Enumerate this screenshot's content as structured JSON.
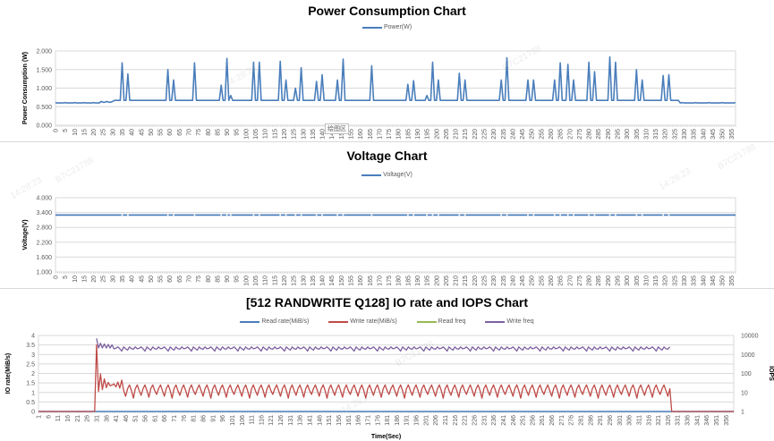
{
  "charts": {
    "power": {
      "title": "Power Consumption Chart",
      "legend": [
        {
          "label": "Power(W)",
          "color": "#4a7ebb"
        }
      ],
      "ylabel": "Power Consumption (W)",
      "yticks": [
        "2.000",
        "1.500",
        "1.000",
        "0.500",
        "0.000"
      ],
      "plot_area_label": "绘图区"
    },
    "voltage": {
      "title": "Voltage Chart",
      "legend": [
        {
          "label": "Voltage(V)",
          "color": "#4a7ebb"
        }
      ],
      "ylabel": "Voltage(V)",
      "yticks": [
        "4.000",
        "3.400",
        "2.800",
        "2.200",
        "1.600",
        "1.000"
      ]
    },
    "io": {
      "title": "[512 RANDWRITE Q128] IO rate and IOPS Chart",
      "legend": [
        {
          "label": "Read rate(MiB/s)",
          "color": "#4a7ebb"
        },
        {
          "label": "Write rate(MiB/s)",
          "color": "#be4b48"
        },
        {
          "label": "Read freq",
          "color": "#98b954"
        },
        {
          "label": "Write freq",
          "color": "#7d60a0"
        }
      ],
      "ylabel": "IO rate(MiB/s)",
      "y2label": "IOPS",
      "xlabel": "Time(Sec)",
      "yticks": [
        "4",
        "3.5",
        "3",
        "2.5",
        "2",
        "1.5",
        "1",
        "0.5",
        "0"
      ],
      "y2ticks": [
        "10000",
        "1000",
        "100",
        "10",
        "1"
      ]
    }
  },
  "watermarks": [
    "14:28:23",
    "B7C21788"
  ],
  "chart_data": [
    {
      "type": "line",
      "title": "Power Consumption Chart",
      "xlabel": "",
      "ylabel": "Power Consumption (W)",
      "ylim": [
        0,
        2
      ],
      "x_range": [
        0,
        357
      ],
      "x_tick_step": 5,
      "grid": true,
      "legend_position": "top",
      "series": [
        {
          "name": "Power(W)",
          "baseline_early": 0.6,
          "baseline_active": 0.67,
          "baseline_late": 0.6,
          "peaks": [
            [
              35,
              1.68
            ],
            [
              38,
              1.38
            ],
            [
              59,
              1.5
            ],
            [
              62,
              1.22
            ],
            [
              73,
              1.68
            ],
            [
              87,
              1.08
            ],
            [
              90,
              1.8
            ],
            [
              92,
              0.8
            ],
            [
              104,
              1.7
            ],
            [
              107,
              1.7
            ],
            [
              118,
              1.72
            ],
            [
              121,
              1.22
            ],
            [
              126,
              1.0
            ],
            [
              129,
              1.55
            ],
            [
              137,
              1.18
            ],
            [
              140,
              1.36
            ],
            [
              148,
              1.22
            ],
            [
              151,
              1.78
            ],
            [
              166,
              1.6
            ],
            [
              185,
              1.1
            ],
            [
              188,
              1.2
            ],
            [
              195,
              0.8
            ],
            [
              198,
              1.7
            ],
            [
              201,
              1.22
            ],
            [
              212,
              1.4
            ],
            [
              215,
              1.22
            ],
            [
              234,
              1.22
            ],
            [
              237,
              1.82
            ],
            [
              248,
              1.22
            ],
            [
              251,
              1.22
            ],
            [
              262,
              1.22
            ],
            [
              265,
              1.68
            ],
            [
              269,
              1.64
            ],
            [
              272,
              1.22
            ],
            [
              280,
              1.7
            ],
            [
              283,
              1.44
            ],
            [
              291,
              1.84
            ],
            [
              294,
              1.7
            ],
            [
              305,
              1.5
            ],
            [
              308,
              1.22
            ],
            [
              319,
              1.34
            ],
            [
              322,
              1.36
            ]
          ]
        }
      ]
    },
    {
      "type": "line",
      "title": "Voltage Chart",
      "ylabel": "Voltage(V)",
      "ylim": [
        1.0,
        4.0
      ],
      "x_range": [
        0,
        357
      ],
      "x_tick_step": 5,
      "grid": true,
      "legend_position": "top",
      "series": [
        {
          "name": "Voltage(V)",
          "constant_value": 3.3
        }
      ]
    },
    {
      "type": "line",
      "title": "[512 RANDWRITE Q128] IO rate and IOPS Chart",
      "xlabel": "Time(Sec)",
      "ylabel": "IO rate(MiB/s)",
      "y2label": "IOPS",
      "ylim": [
        0,
        4
      ],
      "y2lim": [
        1,
        10000
      ],
      "y2scale": "log",
      "x_range": [
        1,
        360
      ],
      "x_tick_start": 1,
      "x_tick_step": 5,
      "grid": true,
      "legend_position": "top",
      "series": [
        {
          "name": "Read rate(MiB/s)",
          "axis": "left",
          "description": "flat at 0 across the run",
          "value": 0
        },
        {
          "name": "Write rate(MiB/s)",
          "axis": "left",
          "description": "0 until t=30, spike to 3.5 at t=31, decaying oscillation then oscillating between ~0.7 and ~1.4 until t=327, then 0",
          "start": 31,
          "end": 327,
          "peak": 3.5,
          "osc_min": 0.7,
          "osc_max": 1.4
        },
        {
          "name": "Read freq",
          "axis": "right",
          "description": "not visible (no data)"
        },
        {
          "name": "Write freq",
          "axis": "right",
          "description": "starts ~7000 at t=31, then oscillating ~1500–2500 until t=327",
          "start": 31,
          "end": 327,
          "initial": 7000,
          "osc_min": 1500,
          "osc_max": 2500
        }
      ]
    }
  ]
}
